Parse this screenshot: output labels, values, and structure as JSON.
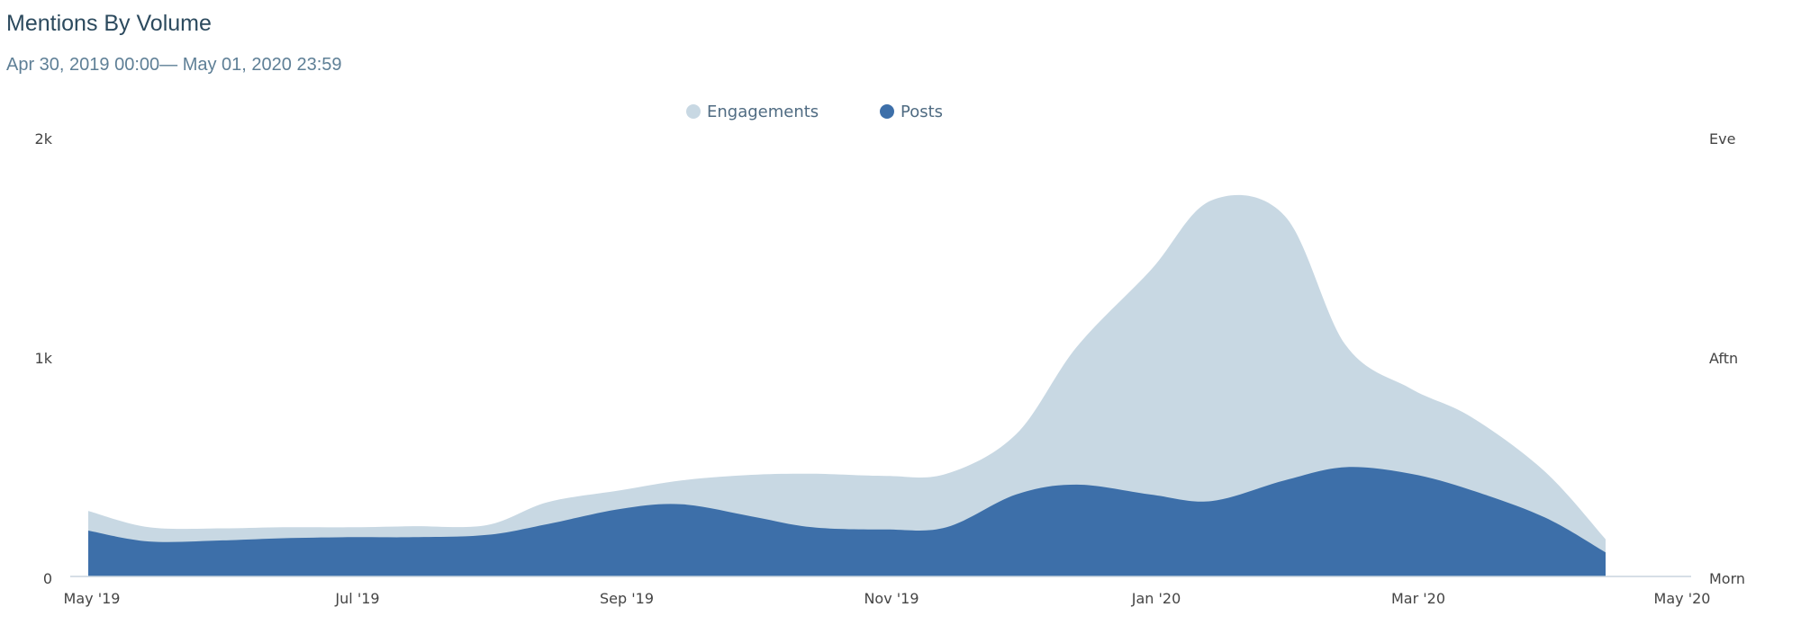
{
  "header": {
    "title": "Mentions By Volume",
    "date_range": "Apr 30, 2019 00:00— May 01, 2020 23:59"
  },
  "colors": {
    "engagements": "#c8d8e3",
    "posts": "#3d6fa9",
    "axis": "#c8d4dd"
  },
  "chart_data": {
    "type": "area",
    "title": "Mentions By Volume",
    "subtitle": "Apr 30, 2019 00:00— May 01, 2020 23:59",
    "x": [
      "2019-05-01",
      "2019-05-15",
      "2019-06-01",
      "2019-06-15",
      "2019-07-01",
      "2019-07-15",
      "2019-08-01",
      "2019-08-15",
      "2019-09-01",
      "2019-09-15",
      "2019-10-01",
      "2019-10-15",
      "2019-11-01",
      "2019-11-15",
      "2019-12-01",
      "2019-12-15",
      "2020-01-01",
      "2020-01-15",
      "2020-02-01",
      "2020-02-15",
      "2020-03-01",
      "2020-03-15",
      "2020-04-01",
      "2020-04-15",
      "2020-05-01"
    ],
    "xlim": [
      "2019-05-01",
      "2020-05-01"
    ],
    "series": [
      {
        "name": "Engagements",
        "values": [
          300,
          225,
          220,
          225,
          225,
          230,
          235,
          340,
          395,
          440,
          465,
          470,
          460,
          470,
          650,
          1050,
          1400,
          1720,
          1650,
          1060,
          860,
          730,
          480,
          170,
          0
        ]
      },
      {
        "name": "Posts",
        "values": [
          210,
          160,
          165,
          175,
          180,
          180,
          190,
          240,
          310,
          330,
          275,
          225,
          215,
          225,
          375,
          420,
          375,
          345,
          440,
          500,
          470,
          395,
          270,
          110,
          0
        ]
      }
    ],
    "x_ticks": [
      "May '19",
      "Jul '19",
      "Sep '19",
      "Nov '19",
      "Jan '20",
      "Mar '20",
      "May '20"
    ],
    "y_left_ticks": [
      "0",
      "1k",
      "2k"
    ],
    "y_right_ticks": [
      "Morn",
      "Aftn",
      "Eve"
    ],
    "ylim": [
      0,
      2000
    ],
    "legend": [
      "Engagements",
      "Posts"
    ],
    "legend_position": "top-center",
    "grid": false
  }
}
